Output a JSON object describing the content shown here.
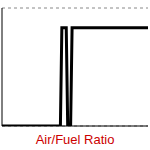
{
  "chart_data": {
    "type": "line",
    "title": "Air/Fuel Ratio",
    "x": [
      0,
      40,
      41,
      44,
      45,
      47,
      48,
      100
    ],
    "values": [
      0,
      0,
      5,
      5,
      0,
      0,
      5,
      5
    ],
    "color": "#000000",
    "xlim": [
      0,
      100
    ],
    "ylim": [
      0,
      6
    ],
    "yticks": [
      0,
      1,
      2,
      3,
      4,
      5,
      6
    ],
    "grid": true,
    "tick_labels": false
  }
}
